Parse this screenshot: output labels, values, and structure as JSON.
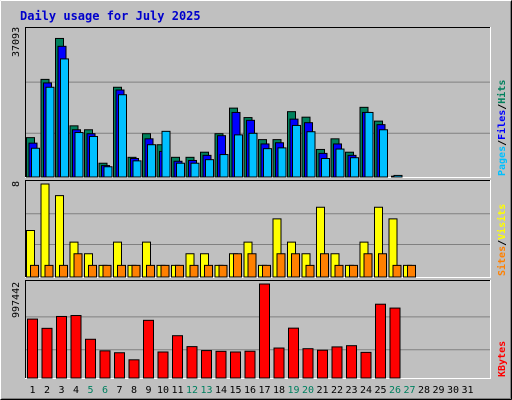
{
  "title": "Daily usage for July 2025",
  "colors": {
    "hits": "#00805c",
    "files": "#0000ff",
    "pages": "#00c0ff",
    "visits": "#ffff00",
    "sites": "#ff8000",
    "kbytes": "#ff0000",
    "weekday": "#000000",
    "weekend": "#008060"
  },
  "right_labels": {
    "pages": "Pages",
    "files": "Files",
    "hits": "Hits",
    "sites": "Sites",
    "visits": "Visits",
    "kbytes": "KBytes",
    "sep": "/"
  },
  "chart_data": [
    {
      "type": "bar",
      "name": "hits-files-pages",
      "axis_max_label": "37093",
      "ymax": 37093,
      "categories": [
        "1",
        "2",
        "3",
        "4",
        "5",
        "6",
        "7",
        "8",
        "9",
        "10",
        "11",
        "12",
        "13",
        "14",
        "15",
        "16",
        "17",
        "18",
        "19",
        "20",
        "21",
        "22",
        "23",
        "24",
        "25",
        "26",
        "27",
        "28",
        "29",
        "30",
        "31"
      ],
      "weekend_days": [
        "5",
        "6",
        "12",
        "13",
        "19",
        "20",
        "26",
        "27"
      ],
      "series": [
        {
          "name": "Hits",
          "values": [
            10000,
            24800,
            35200,
            13000,
            12000,
            3500,
            22800,
            5000,
            11000,
            8200,
            5000,
            5000,
            6300,
            11000,
            17500,
            15100,
            9500,
            9500,
            16600,
            15200,
            7000,
            9700,
            6300,
            17700,
            14200,
            0,
            0,
            0,
            0,
            0,
            0
          ]
        },
        {
          "name": "Files",
          "values": [
            8600,
            23900,
            33200,
            12000,
            11000,
            2900,
            22100,
            4700,
            9700,
            6500,
            4000,
            4200,
            5500,
            10500,
            16400,
            14400,
            8400,
            8700,
            14700,
            13800,
            6000,
            8400,
            5500,
            16400,
            13300,
            200,
            0,
            0,
            0,
            0,
            0
          ]
        },
        {
          "name": "Pages",
          "values": [
            7300,
            22800,
            30000,
            11300,
            10300,
            2600,
            20900,
            4100,
            8200,
            11600,
            3500,
            3500,
            4400,
            5700,
            10700,
            11100,
            7200,
            7400,
            13100,
            11500,
            4700,
            7100,
            4900,
            16400,
            12000,
            400,
            0,
            0,
            0,
            0,
            0
          ]
        }
      ]
    },
    {
      "type": "bar",
      "name": "visits-sites",
      "axis_max_label": "8",
      "ymax": 8,
      "categories": [
        "1",
        "2",
        "3",
        "4",
        "5",
        "6",
        "7",
        "8",
        "9",
        "10",
        "11",
        "12",
        "13",
        "14",
        "15",
        "16",
        "17",
        "18",
        "19",
        "20",
        "21",
        "22",
        "23",
        "24",
        "25",
        "26",
        "27",
        "28",
        "29",
        "30",
        "31"
      ],
      "series": [
        {
          "name": "Visits",
          "values": [
            4,
            8,
            7,
            3,
            2,
            1,
            3,
            1,
            3,
            1,
            1,
            2,
            2,
            1,
            2,
            3,
            1,
            5,
            3,
            2,
            6,
            2,
            1,
            3,
            6,
            5,
            1,
            0,
            0,
            0,
            0
          ]
        },
        {
          "name": "Sites",
          "values": [
            1,
            1,
            1,
            2,
            1,
            1,
            1,
            1,
            1,
            1,
            1,
            1,
            1,
            1,
            2,
            2,
            1,
            2,
            2,
            1,
            2,
            1,
            1,
            2,
            2,
            1,
            1,
            0,
            0,
            0,
            0
          ]
        }
      ]
    },
    {
      "type": "bar",
      "name": "kbytes",
      "axis_max_label": "997442",
      "ymax": 997442,
      "categories": [
        "1",
        "2",
        "3",
        "4",
        "5",
        "6",
        "7",
        "8",
        "9",
        "10",
        "11",
        "12",
        "13",
        "14",
        "15",
        "16",
        "17",
        "18",
        "19",
        "20",
        "21",
        "22",
        "23",
        "24",
        "25",
        "26",
        "27",
        "28",
        "29",
        "30",
        "31"
      ],
      "series": [
        {
          "name": "KBytes",
          "values": [
            625000,
            527000,
            653000,
            663000,
            411000,
            288000,
            268000,
            193000,
            612000,
            276000,
            449000,
            333000,
            291000,
            283000,
            276000,
            284000,
            997442,
            318000,
            529000,
            311000,
            295000,
            330000,
            343000,
            272000,
            783000,
            742000,
            0,
            0,
            0,
            0,
            0
          ]
        }
      ]
    }
  ]
}
